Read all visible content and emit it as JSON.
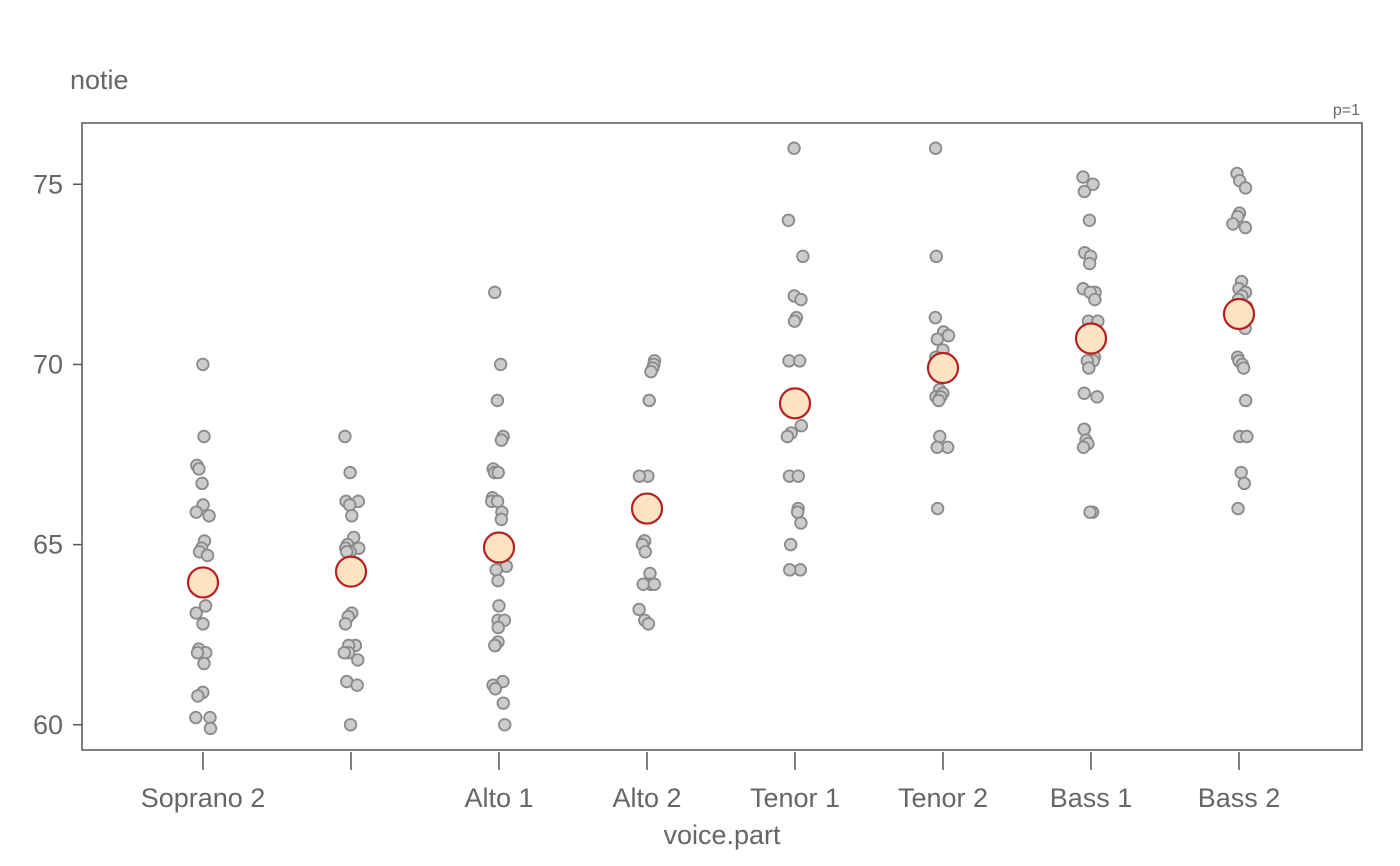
{
  "chart_data": {
    "type": "scatter",
    "title": "notie",
    "corner_label": "p=1",
    "xlabel": "voice.part",
    "ylabel": "",
    "categories": [
      "Soprano 2",
      "",
      "Alto 1",
      "Alto 2",
      "Tenor 1",
      "Tenor 2",
      "Bass 1",
      "Bass 2"
    ],
    "ylim": [
      59.3,
      76.7
    ],
    "yticks": [
      60,
      65,
      70,
      75
    ],
    "grid": false,
    "legend": "none",
    "points": [
      {
        "x": 0,
        "y": [
          70.0,
          68.0,
          67.2,
          67.1,
          66.7,
          66.1,
          65.9,
          65.8,
          65.1,
          64.9,
          64.8,
          64.7,
          63.3,
          63.1,
          62.8,
          62.1,
          62.0,
          62.0,
          61.7,
          60.9,
          60.8,
          60.2,
          60.2,
          59.9
        ]
      },
      {
        "x": 1,
        "y": [
          68.0,
          67.0,
          66.2,
          66.2,
          66.1,
          65.8,
          65.2,
          65.0,
          64.9,
          64.9,
          64.8,
          64.8,
          63.1,
          63.0,
          62.8,
          62.2,
          62.2,
          62.0,
          62.0,
          61.8,
          61.2,
          61.1,
          60.0
        ]
      },
      {
        "x": 2,
        "y": [
          72.0,
          70.0,
          69.0,
          68.0,
          67.9,
          67.1,
          67.0,
          67.0,
          66.3,
          66.2,
          66.2,
          65.9,
          65.7,
          64.4,
          64.3,
          64.0,
          63.3,
          62.9,
          62.9,
          62.7,
          62.3,
          62.2,
          62.2,
          61.2,
          61.1,
          61.0,
          60.6,
          60.0
        ]
      },
      {
        "x": 3,
        "y": [
          70.1,
          70.0,
          69.9,
          69.8,
          69.0,
          66.9,
          66.9,
          65.1,
          65.1,
          65.0,
          64.8,
          64.2,
          63.9,
          63.9,
          63.9,
          63.2,
          62.9,
          62.8
        ]
      },
      {
        "x": 4,
        "y": [
          76.0,
          74.0,
          73.0,
          71.9,
          71.8,
          71.3,
          71.2,
          70.1,
          70.1,
          68.3,
          68.1,
          68.0,
          66.9,
          66.9,
          66.0,
          65.9,
          65.6,
          65.0,
          64.3,
          64.3
        ]
      },
      {
        "x": 5,
        "y": [
          76.0,
          73.0,
          71.3,
          70.9,
          70.8,
          70.8,
          70.7,
          70.4,
          70.2,
          69.3,
          69.2,
          69.1,
          69.1,
          69.0,
          68.0,
          67.7,
          67.7,
          66.0
        ]
      },
      {
        "x": 6,
        "y": [
          75.2,
          75.0,
          74.8,
          74.0,
          73.1,
          73.0,
          72.8,
          72.1,
          72.0,
          72.0,
          71.8,
          71.2,
          71.2,
          70.2,
          70.1,
          70.1,
          69.9,
          69.2,
          69.1,
          68.2,
          68.2,
          67.9,
          67.8,
          67.7,
          65.9,
          65.9
        ]
      },
      {
        "x": 7,
        "y": [
          75.3,
          75.1,
          74.9,
          74.2,
          74.1,
          73.9,
          73.8,
          72.3,
          72.1,
          72.0,
          71.9,
          71.8,
          71.6,
          71.0,
          70.2,
          70.1,
          70.0,
          69.9,
          69.0,
          68.0,
          68.0,
          67.0,
          66.7,
          66.0
        ]
      }
    ],
    "means": [
      63.95,
      64.25,
      64.92,
      66.0,
      68.92,
      69.9,
      70.72,
      71.4
    ],
    "colors": {
      "point_fill": "#cccccc",
      "point_stroke": "#8a8a8a",
      "mean_fill": "#fde3c4",
      "mean_stroke": "#b22222",
      "frame": "#555555",
      "text": "#666666"
    }
  }
}
